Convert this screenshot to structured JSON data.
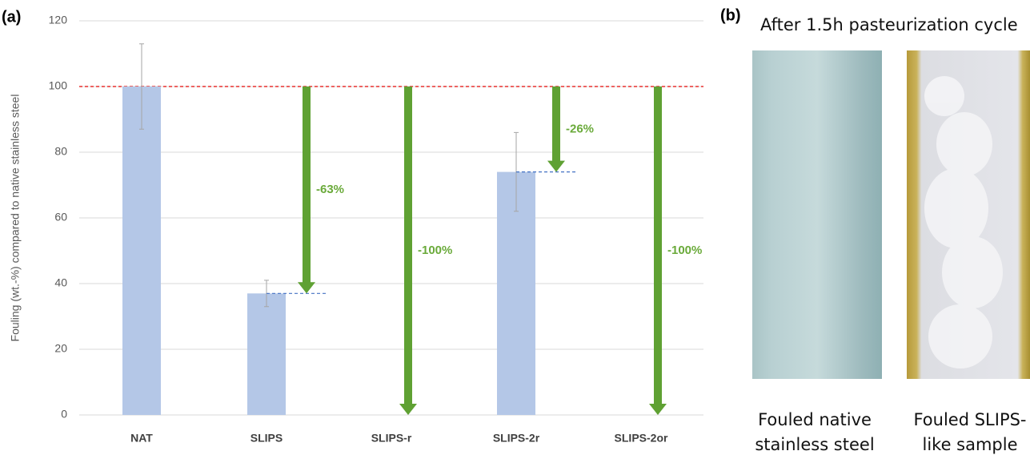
{
  "chart_data": {
    "type": "bar",
    "panel_label": "(a)",
    "ylabel": "Fouling (wt.-%) compared to native stainless steel",
    "categories": [
      "NAT",
      "SLIPS",
      "SLIPS-r",
      "SLIPS-2r",
      "SLIPS-2or"
    ],
    "values": [
      100,
      37,
      0,
      74,
      0
    ],
    "errors": [
      13,
      4,
      null,
      12,
      null
    ],
    "reductions": [
      null,
      "-63%",
      "-100%",
      "-26%",
      "-100%"
    ],
    "reference_line": 100,
    "reference_color": "#e8312f",
    "color": "#b4c7e7",
    "arrow_color": "#5fa133",
    "ylim": [
      0,
      120
    ],
    "yticks": [
      0,
      20,
      40,
      60,
      80,
      100,
      120
    ],
    "grid": true
  },
  "photos": {
    "panel_label": "(b)",
    "title": "After 1.5h pasteurization cycle",
    "captions": [
      [
        "Fouled native",
        "stainless steel"
      ],
      [
        "Fouled SLIPS-",
        "like sample"
      ]
    ]
  }
}
